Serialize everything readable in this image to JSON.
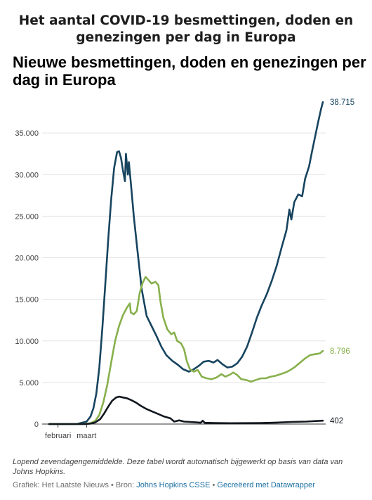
{
  "page": {
    "heading_line1": "Het aantal COVID-19 besmettingen, doden en",
    "heading_line2": "genezingen per dag in Europa"
  },
  "chart_data": {
    "type": "line",
    "title_line1": "Nieuwe besmettingen, doden en genezingen per",
    "title_line2": "dag in Europa",
    "x_start": "2020-01-23",
    "x_end": "2020-10-27",
    "x_ticks": [
      {
        "label": "februari",
        "date": "2020-02-01"
      },
      {
        "label": "maart",
        "date": "2020-03-01"
      }
    ],
    "ylim": [
      0,
      40000
    ],
    "y_ticks": [
      {
        "value": 0,
        "label": "0"
      },
      {
        "value": 5000,
        "label": "5.000"
      },
      {
        "value": 10000,
        "label": "10.000"
      },
      {
        "value": 15000,
        "label": "15.000"
      },
      {
        "value": 20000,
        "label": "20.000"
      },
      {
        "value": 25000,
        "label": "25.000"
      },
      {
        "value": 30000,
        "label": "30.000"
      },
      {
        "value": 35000,
        "label": "35.000"
      }
    ],
    "series": [
      {
        "key": "besmettingen",
        "color": "#17445f",
        "end_label": "38.715",
        "points": [
          [
            "2020-01-23",
            0
          ],
          [
            "2020-02-20",
            0
          ],
          [
            "2020-03-01",
            300
          ],
          [
            "2020-03-05",
            900
          ],
          [
            "2020-03-08",
            1900
          ],
          [
            "2020-03-11",
            3700
          ],
          [
            "2020-03-14",
            6800
          ],
          [
            "2020-03-17",
            11500
          ],
          [
            "2020-03-20",
            16800
          ],
          [
            "2020-03-23",
            22200
          ],
          [
            "2020-03-26",
            27000
          ],
          [
            "2020-03-29",
            30800
          ],
          [
            "2020-04-01",
            32700
          ],
          [
            "2020-04-03",
            32800
          ],
          [
            "2020-04-05",
            32000
          ],
          [
            "2020-04-07",
            30500
          ],
          [
            "2020-04-09",
            29200
          ],
          [
            "2020-04-10",
            32500
          ],
          [
            "2020-04-12",
            30000
          ],
          [
            "2020-04-13",
            31500
          ],
          [
            "2020-04-15",
            29000
          ],
          [
            "2020-04-18",
            25000
          ],
          [
            "2020-04-22",
            20500
          ],
          [
            "2020-04-26",
            16200
          ],
          [
            "2020-05-01",
            13000
          ],
          [
            "2020-05-06",
            11800
          ],
          [
            "2020-05-11",
            10600
          ],
          [
            "2020-05-16",
            9300
          ],
          [
            "2020-05-21",
            8300
          ],
          [
            "2020-05-27",
            7600
          ],
          [
            "2020-06-02",
            7100
          ],
          [
            "2020-06-07",
            6600
          ],
          [
            "2020-06-13",
            6300
          ],
          [
            "2020-06-18",
            6600
          ],
          [
            "2020-06-23",
            7000
          ],
          [
            "2020-06-28",
            7500
          ],
          [
            "2020-07-03",
            7600
          ],
          [
            "2020-07-08",
            7400
          ],
          [
            "2020-07-12",
            7700
          ],
          [
            "2020-07-17",
            7200
          ],
          [
            "2020-07-22",
            6800
          ],
          [
            "2020-07-27",
            6900
          ],
          [
            "2020-08-01",
            7300
          ],
          [
            "2020-08-06",
            8100
          ],
          [
            "2020-08-11",
            9300
          ],
          [
            "2020-08-16",
            11000
          ],
          [
            "2020-08-21",
            12800
          ],
          [
            "2020-08-26",
            14300
          ],
          [
            "2020-08-31",
            15600
          ],
          [
            "2020-09-05",
            17200
          ],
          [
            "2020-09-10",
            19000
          ],
          [
            "2020-09-15",
            21200
          ],
          [
            "2020-09-20",
            23300
          ],
          [
            "2020-09-23",
            25800
          ],
          [
            "2020-09-25",
            24600
          ],
          [
            "2020-09-28",
            26700
          ],
          [
            "2020-10-02",
            27600
          ],
          [
            "2020-10-06",
            27400
          ],
          [
            "2020-10-09",
            29500
          ],
          [
            "2020-10-13",
            31000
          ],
          [
            "2020-10-16",
            32800
          ],
          [
            "2020-10-19",
            34500
          ],
          [
            "2020-10-22",
            36200
          ],
          [
            "2020-10-25",
            37800
          ],
          [
            "2020-10-27",
            38715
          ]
        ]
      },
      {
        "key": "genezingen",
        "color": "#87b04c",
        "end_label": "8.796",
        "points": [
          [
            "2020-01-23",
            0
          ],
          [
            "2020-02-25",
            0
          ],
          [
            "2020-03-05",
            100
          ],
          [
            "2020-03-10",
            400
          ],
          [
            "2020-03-14",
            1100
          ],
          [
            "2020-03-18",
            2600
          ],
          [
            "2020-03-22",
            4700
          ],
          [
            "2020-03-26",
            7400
          ],
          [
            "2020-03-30",
            10000
          ],
          [
            "2020-04-03",
            11800
          ],
          [
            "2020-04-07",
            13100
          ],
          [
            "2020-04-11",
            14000
          ],
          [
            "2020-04-14",
            14500
          ],
          [
            "2020-04-15",
            13400
          ],
          [
            "2020-04-18",
            13200
          ],
          [
            "2020-04-21",
            13600
          ],
          [
            "2020-04-24",
            15800
          ],
          [
            "2020-04-27",
            17000
          ],
          [
            "2020-04-30",
            17700
          ],
          [
            "2020-05-03",
            17300
          ],
          [
            "2020-05-06",
            16900
          ],
          [
            "2020-05-10",
            17100
          ],
          [
            "2020-05-13",
            16700
          ],
          [
            "2020-05-15",
            14800
          ],
          [
            "2020-05-18",
            12800
          ],
          [
            "2020-05-22",
            11400
          ],
          [
            "2020-05-26",
            10800
          ],
          [
            "2020-05-29",
            11000
          ],
          [
            "2020-06-01",
            10000
          ],
          [
            "2020-06-05",
            9700
          ],
          [
            "2020-06-08",
            9000
          ],
          [
            "2020-06-11",
            7500
          ],
          [
            "2020-06-14",
            6600
          ],
          [
            "2020-06-18",
            6300
          ],
          [
            "2020-06-22",
            6500
          ],
          [
            "2020-06-26",
            5700
          ],
          [
            "2020-07-01",
            5500
          ],
          [
            "2020-07-06",
            5400
          ],
          [
            "2020-07-11",
            5600
          ],
          [
            "2020-07-16",
            6000
          ],
          [
            "2020-07-20",
            5700
          ],
          [
            "2020-07-24",
            5900
          ],
          [
            "2020-07-28",
            6200
          ],
          [
            "2020-08-01",
            5900
          ],
          [
            "2020-08-05",
            5400
          ],
          [
            "2020-08-10",
            5300
          ],
          [
            "2020-08-15",
            5100
          ],
          [
            "2020-08-20",
            5300
          ],
          [
            "2020-08-25",
            5500
          ],
          [
            "2020-08-30",
            5500
          ],
          [
            "2020-09-04",
            5700
          ],
          [
            "2020-09-09",
            5800
          ],
          [
            "2020-09-14",
            6000
          ],
          [
            "2020-09-19",
            6200
          ],
          [
            "2020-09-24",
            6500
          ],
          [
            "2020-09-29",
            6900
          ],
          [
            "2020-10-04",
            7400
          ],
          [
            "2020-10-09",
            7900
          ],
          [
            "2020-10-14",
            8300
          ],
          [
            "2020-10-19",
            8400
          ],
          [
            "2020-10-24",
            8500
          ],
          [
            "2020-10-27",
            8796
          ]
        ]
      },
      {
        "key": "doden",
        "color": "#12181f",
        "end_label": "402",
        "points": [
          [
            "2020-01-23",
            0
          ],
          [
            "2020-02-28",
            0
          ],
          [
            "2020-03-05",
            50
          ],
          [
            "2020-03-10",
            200
          ],
          [
            "2020-03-15",
            600
          ],
          [
            "2020-03-19",
            1300
          ],
          [
            "2020-03-23",
            2100
          ],
          [
            "2020-03-27",
            2800
          ],
          [
            "2020-03-31",
            3200
          ],
          [
            "2020-04-03",
            3300
          ],
          [
            "2020-04-07",
            3200
          ],
          [
            "2020-04-11",
            3100
          ],
          [
            "2020-04-15",
            2900
          ],
          [
            "2020-04-20",
            2600
          ],
          [
            "2020-04-25",
            2200
          ],
          [
            "2020-05-01",
            1800
          ],
          [
            "2020-05-07",
            1500
          ],
          [
            "2020-05-13",
            1200
          ],
          [
            "2020-05-19",
            900
          ],
          [
            "2020-05-25",
            700
          ],
          [
            "2020-05-29",
            300
          ],
          [
            "2020-06-03",
            450
          ],
          [
            "2020-06-08",
            300
          ],
          [
            "2020-06-14",
            250
          ],
          [
            "2020-06-20",
            200
          ],
          [
            "2020-06-25",
            160
          ],
          [
            "2020-06-27",
            400
          ],
          [
            "2020-06-29",
            150
          ],
          [
            "2020-07-10",
            120
          ],
          [
            "2020-07-25",
            100
          ],
          [
            "2020-08-10",
            110
          ],
          [
            "2020-08-25",
            130
          ],
          [
            "2020-09-10",
            180
          ],
          [
            "2020-09-25",
            250
          ],
          [
            "2020-10-10",
            300
          ],
          [
            "2020-10-20",
            360
          ],
          [
            "2020-10-27",
            402
          ]
        ]
      }
    ]
  },
  "footer": {
    "note": "Lopend zevendagengemiddelde. Deze tabel wordt automatisch bijgewerkt op basis van data van Johns Hopkins.",
    "credit_prefix": "Grafiek: Het Laatste Nieuws • Bron: ",
    "source_link": "Johns Hopkins CSSE",
    "separator": " • ",
    "made_with_link": "Gecreëerd met Datawrapper"
  }
}
